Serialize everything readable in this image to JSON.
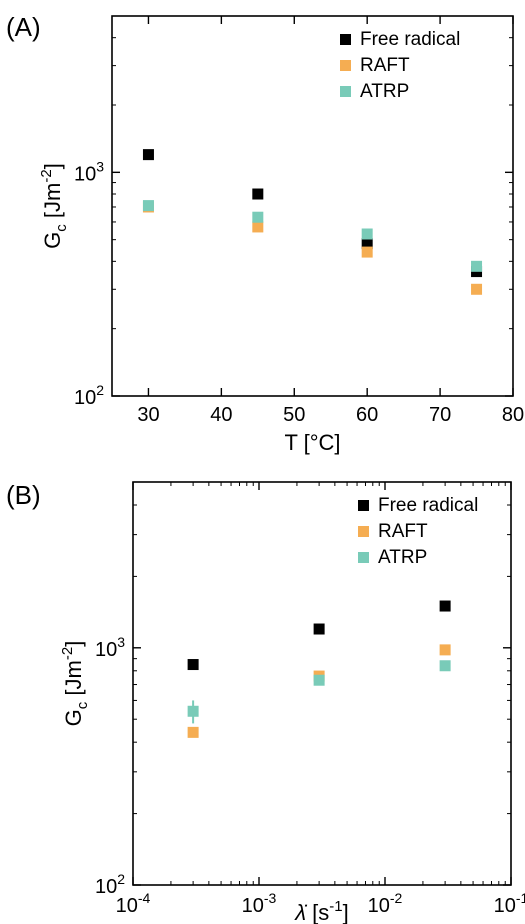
{
  "panels": [
    {
      "label": "(A)"
    },
    {
      "label": "(B)"
    }
  ],
  "chart_data": [
    {
      "type": "scatter",
      "panel": "(A)",
      "xlabel": "T [°C]",
      "ylabel": "G_c [Jm^-2]",
      "xscale": "linear",
      "yscale": "log",
      "xlim": [
        25,
        80
      ],
      "ylim": [
        100,
        5000
      ],
      "xticks": [
        30,
        40,
        50,
        60,
        70,
        80
      ],
      "xtick_labels": [
        "30",
        "40",
        "50",
        "60",
        "70",
        "80"
      ],
      "yticks": [
        100,
        1000
      ],
      "ytick_labels": [
        {
          "base": "10",
          "exp": "2"
        },
        {
          "base": "10",
          "exp": "3"
        }
      ],
      "legend_position": "top-right",
      "grid": false,
      "series": [
        {
          "name": "Free radical",
          "color": "#000000",
          "x": [
            30,
            45,
            60,
            75
          ],
          "y": [
            1200,
            800,
            480,
            360
          ]
        },
        {
          "name": "RAFT",
          "color": "#F5AD52",
          "x": [
            30,
            45,
            60,
            75
          ],
          "y": [
            700,
            570,
            440,
            300
          ]
        },
        {
          "name": "ATRP",
          "color": "#79CBB8",
          "x": [
            30,
            45,
            60,
            75
          ],
          "y": [
            710,
            630,
            530,
            380
          ]
        }
      ]
    },
    {
      "type": "scatter",
      "panel": "(B)",
      "xlabel": "λ̇ [s^-1]",
      "ylabel": "G_c [Jm^-2]",
      "xscale": "log",
      "yscale": "log",
      "xlim": [
        0.0001,
        0.1
      ],
      "ylim": [
        100,
        5000
      ],
      "xticks": [
        0.0001,
        0.001,
        0.01,
        0.1
      ],
      "xtick_labels": [
        {
          "base": "10",
          "exp": "-4"
        },
        {
          "base": "10",
          "exp": "-3"
        },
        {
          "base": "10",
          "exp": "-2"
        },
        {
          "base": "10",
          "exp": "-1"
        }
      ],
      "yticks": [
        100,
        1000
      ],
      "ytick_labels": [
        {
          "base": "10",
          "exp": "2"
        },
        {
          "base": "10",
          "exp": "3"
        }
      ],
      "legend_position": "top-right",
      "grid": false,
      "series": [
        {
          "name": "Free radical",
          "color": "#000000",
          "x": [
            0.0003,
            0.003,
            0.03
          ],
          "y": [
            850,
            1200,
            1500
          ]
        },
        {
          "name": "RAFT",
          "color": "#F5AD52",
          "x": [
            0.0003,
            0.003,
            0.03
          ],
          "y": [
            440,
            760,
            980
          ]
        },
        {
          "name": "ATRP",
          "color": "#79CBB8",
          "x": [
            0.0003,
            0.003,
            0.03
          ],
          "y": [
            540,
            730,
            840
          ],
          "yerr": [
            60,
            0,
            0
          ]
        }
      ]
    }
  ]
}
